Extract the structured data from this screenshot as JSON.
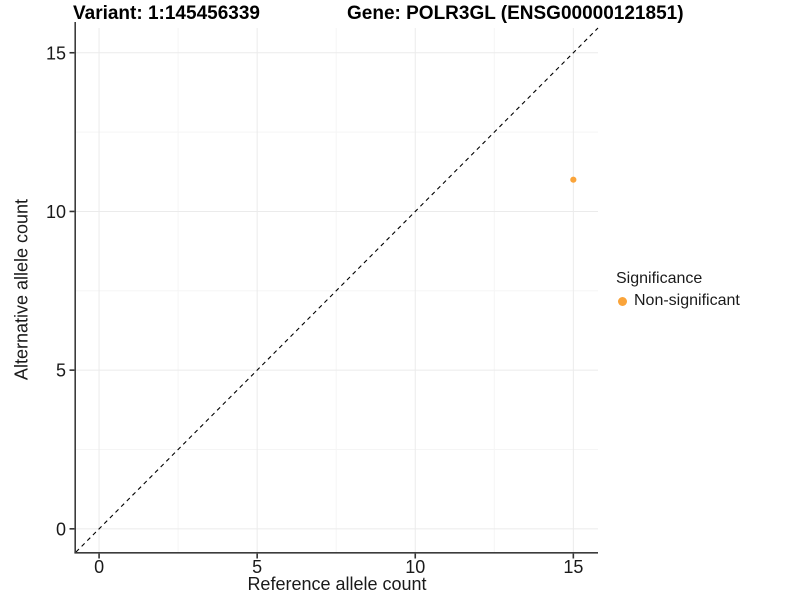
{
  "chart_data": {
    "type": "scatter",
    "title_left": "Variant: 1:145456339",
    "title_right": "Gene: POLR3GL (ENSG00000121851)",
    "xlabel": "Reference allele count",
    "ylabel": "Alternative allele count",
    "xlim": [
      -0.73,
      15.78
    ],
    "ylim": [
      -0.73,
      15.78
    ],
    "xticks": [
      0,
      5,
      10,
      15
    ],
    "yticks": [
      0,
      5,
      10,
      15
    ],
    "minor_xticks": [
      2.5,
      7.5,
      12.5
    ],
    "minor_yticks": [
      2.5,
      7.5,
      12.5
    ],
    "grid": "major and minor, very light gray on white",
    "reference_line": {
      "kind": "identity y=x",
      "style": "dashed",
      "color": "#000000"
    },
    "series": [
      {
        "name": "Non-significant",
        "color": "#FAA43A",
        "points": [
          {
            "x": 15,
            "y": 11
          }
        ]
      }
    ],
    "legend": {
      "position": "right-center",
      "title": "Significance",
      "items": [
        {
          "label": "Non-significant",
          "color": "#FAA43A",
          "marker": "dot"
        }
      ]
    }
  },
  "colors": {
    "background": "#FFFFFF",
    "axis": "#3C3C3C",
    "tick": "#333333",
    "text": "#1A1A1A",
    "grid_major": "#EBEBEB",
    "grid_minor": "#F5F5F5"
  }
}
